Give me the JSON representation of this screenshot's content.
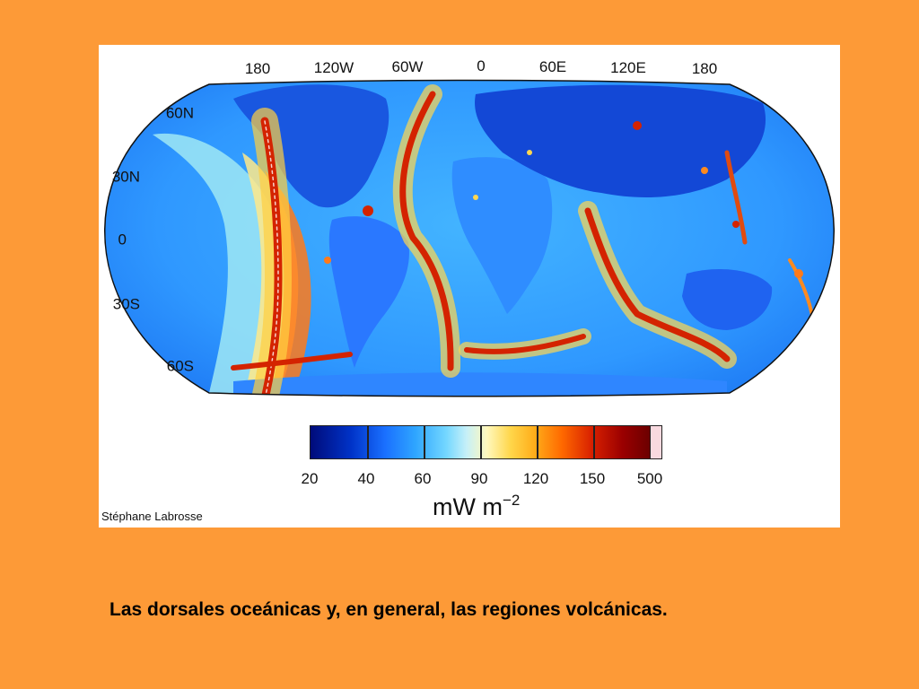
{
  "map": {
    "longitude_labels": [
      "180",
      "120W",
      "60W",
      "0",
      "60E",
      "120E",
      "180"
    ],
    "latitude_labels": [
      "60N",
      "30N",
      "0",
      "30S",
      "60S"
    ]
  },
  "legend": {
    "tick_labels": [
      "20",
      "40",
      "60",
      "90",
      "120",
      "150",
      "500"
    ],
    "unit_main": "mW m",
    "unit_exponent": "−2",
    "colors": {
      "low": "#000b7a",
      "mid_low": "#2fa6ff",
      "mid": "#fff8bd",
      "mid_high": "#ff6a00",
      "high": "#6c0000",
      "cap": "#f8d9df"
    }
  },
  "credit": "Stéphane Labrosse",
  "caption": "Las dorsales oceánicas y, en general, las regiones volcánicas.",
  "colors": {
    "slide_background": "#fd9a37",
    "panel_background": "#ffffff",
    "ocean_base": "#2d9bff",
    "ridge": "#d42300"
  }
}
